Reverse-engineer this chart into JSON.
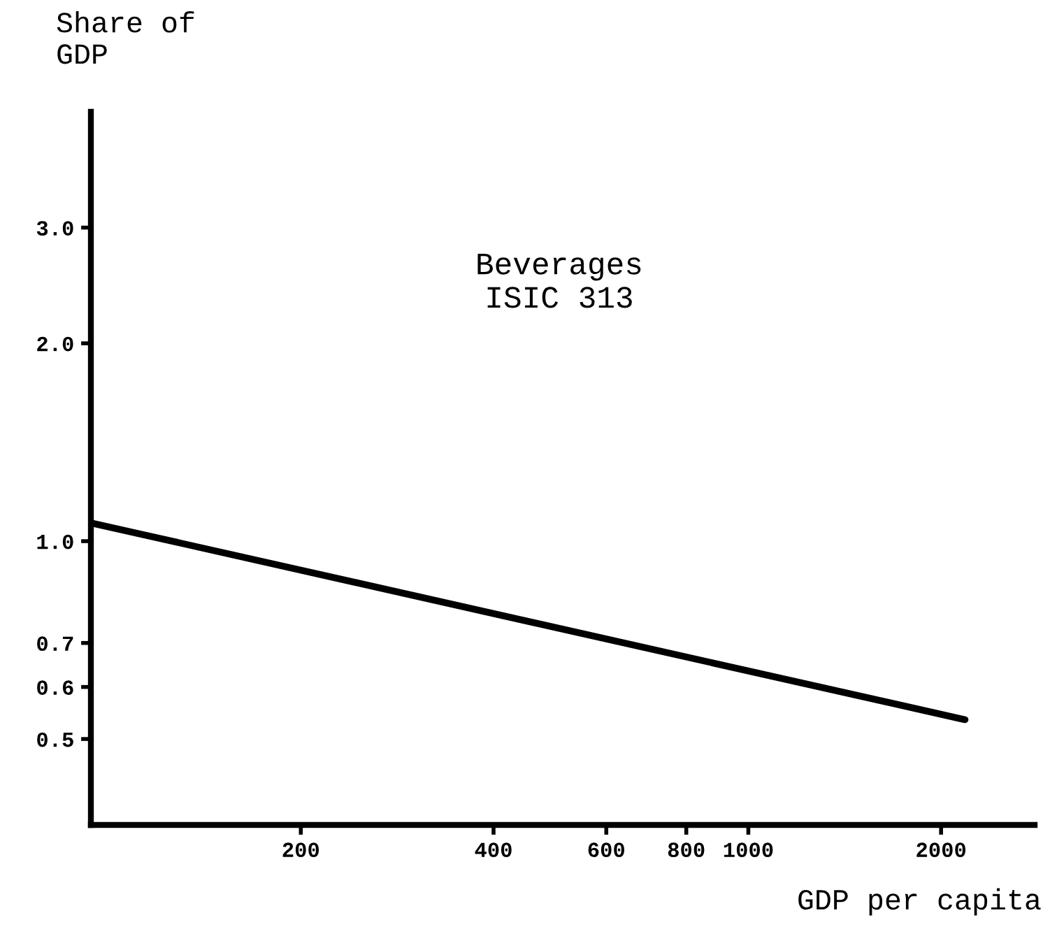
{
  "chart_data": {
    "type": "line",
    "ylabel": "Share of\nGDP",
    "xlabel": "GDP per capita",
    "annotations": [
      "Beverages\nISIC 313"
    ],
    "x": [
      94,
      2180
    ],
    "series": [
      {
        "color": "#000000",
        "values": [
          1.066,
          0.535
        ]
      }
    ],
    "log": "xy",
    "xlim": [
      94,
      2800
    ],
    "ylim": [
      0.37,
      4.5
    ],
    "xticks": [
      200,
      400,
      600,
      800,
      1000,
      2000
    ],
    "yticks": [
      {
        "value": 0.5,
        "label": "0.5"
      },
      {
        "value": 0.6,
        "label": "0.6"
      },
      {
        "value": 0.7,
        "label": "0.7"
      },
      {
        "value": 1,
        "label": "1.0"
      },
      {
        "value": 2,
        "label": "2.0"
      },
      {
        "value": 3,
        "label": "3.0"
      }
    ],
    "grid": false,
    "marker": "none",
    "line_style": "solid"
  }
}
